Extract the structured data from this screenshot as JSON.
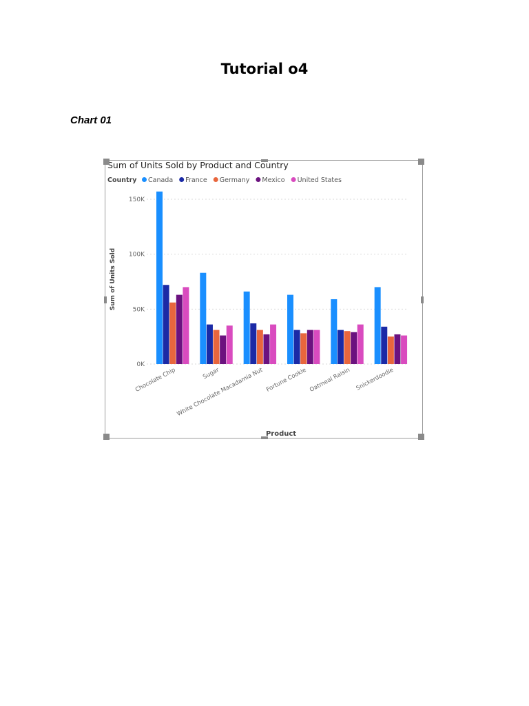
{
  "document": {
    "title": "Tutorial o4",
    "section_heading": "Chart 01"
  },
  "colors": {
    "Canada": "#1a8fff",
    "France": "#1b2aa6",
    "Germany": "#e8663d",
    "Mexico": "#6b127f",
    "United States": "#d94bbf",
    "gridline": "#d9d9d9",
    "axis_text": "#666666",
    "title_text": "#252423"
  },
  "chart_data": {
    "type": "bar",
    "title": "Sum of Units Sold by Product and Country",
    "legend_title": "Country",
    "legend_position": "top-left",
    "xlabel": "Product",
    "ylabel": "Sum of Units Sold",
    "ylim": [
      0,
      160000
    ],
    "yticks": [
      0,
      50000,
      100000,
      150000
    ],
    "ytick_labels": [
      "0K",
      "50K",
      "100K",
      "150K"
    ],
    "grid": true,
    "categories": [
      "Chocolate Chip",
      "Sugar",
      "White Chocolate Macadamia Nut",
      "Fortune Cookie",
      "Oatmeal Raisin",
      "Snickerdoodle"
    ],
    "series": [
      {
        "name": "Canada",
        "values": [
          157000,
          83000,
          66000,
          63000,
          59000,
          70000
        ]
      },
      {
        "name": "France",
        "values": [
          72000,
          36000,
          37000,
          31000,
          31000,
          34000
        ]
      },
      {
        "name": "Germany",
        "values": [
          56000,
          31000,
          31000,
          28000,
          30000,
          25000
        ]
      },
      {
        "name": "Mexico",
        "values": [
          63000,
          26000,
          27000,
          31000,
          29000,
          27000
        ]
      },
      {
        "name": "United States",
        "values": [
          70000,
          35000,
          36000,
          31000,
          36000,
          26000
        ]
      }
    ]
  }
}
